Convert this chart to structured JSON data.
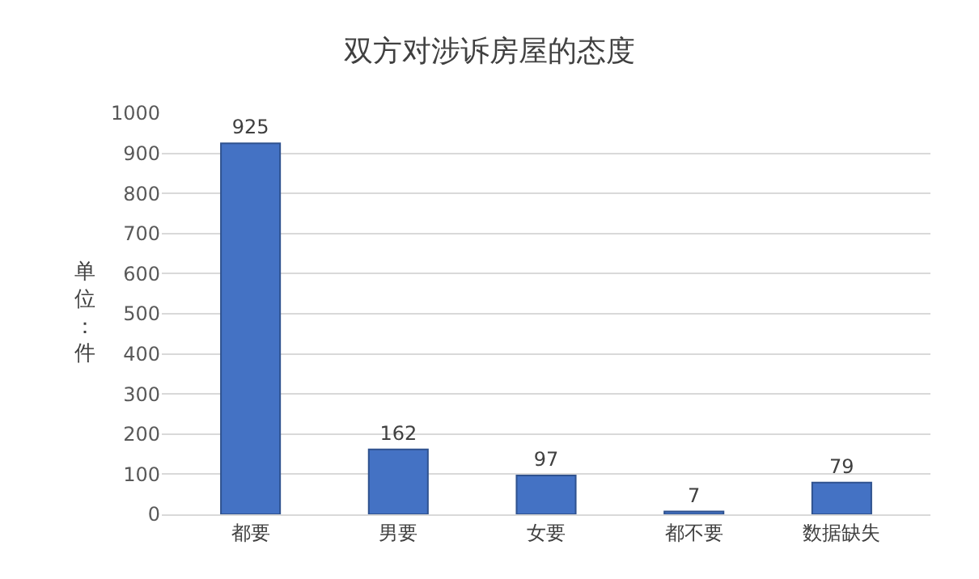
{
  "chart_data": {
    "type": "bar",
    "title": "双方对涉诉房屋的态度",
    "ylabel": "单位：件",
    "categories": [
      "都要",
      "男要",
      "女要",
      "都不要",
      "数据缺失"
    ],
    "values": [
      925,
      162,
      97,
      7,
      79
    ],
    "color": "#4472c4",
    "ylim": [
      0,
      1000
    ],
    "yticks": [
      0,
      100,
      200,
      300,
      400,
      500,
      600,
      700,
      800,
      900,
      1000
    ],
    "grid": "y",
    "data_labels": true
  }
}
